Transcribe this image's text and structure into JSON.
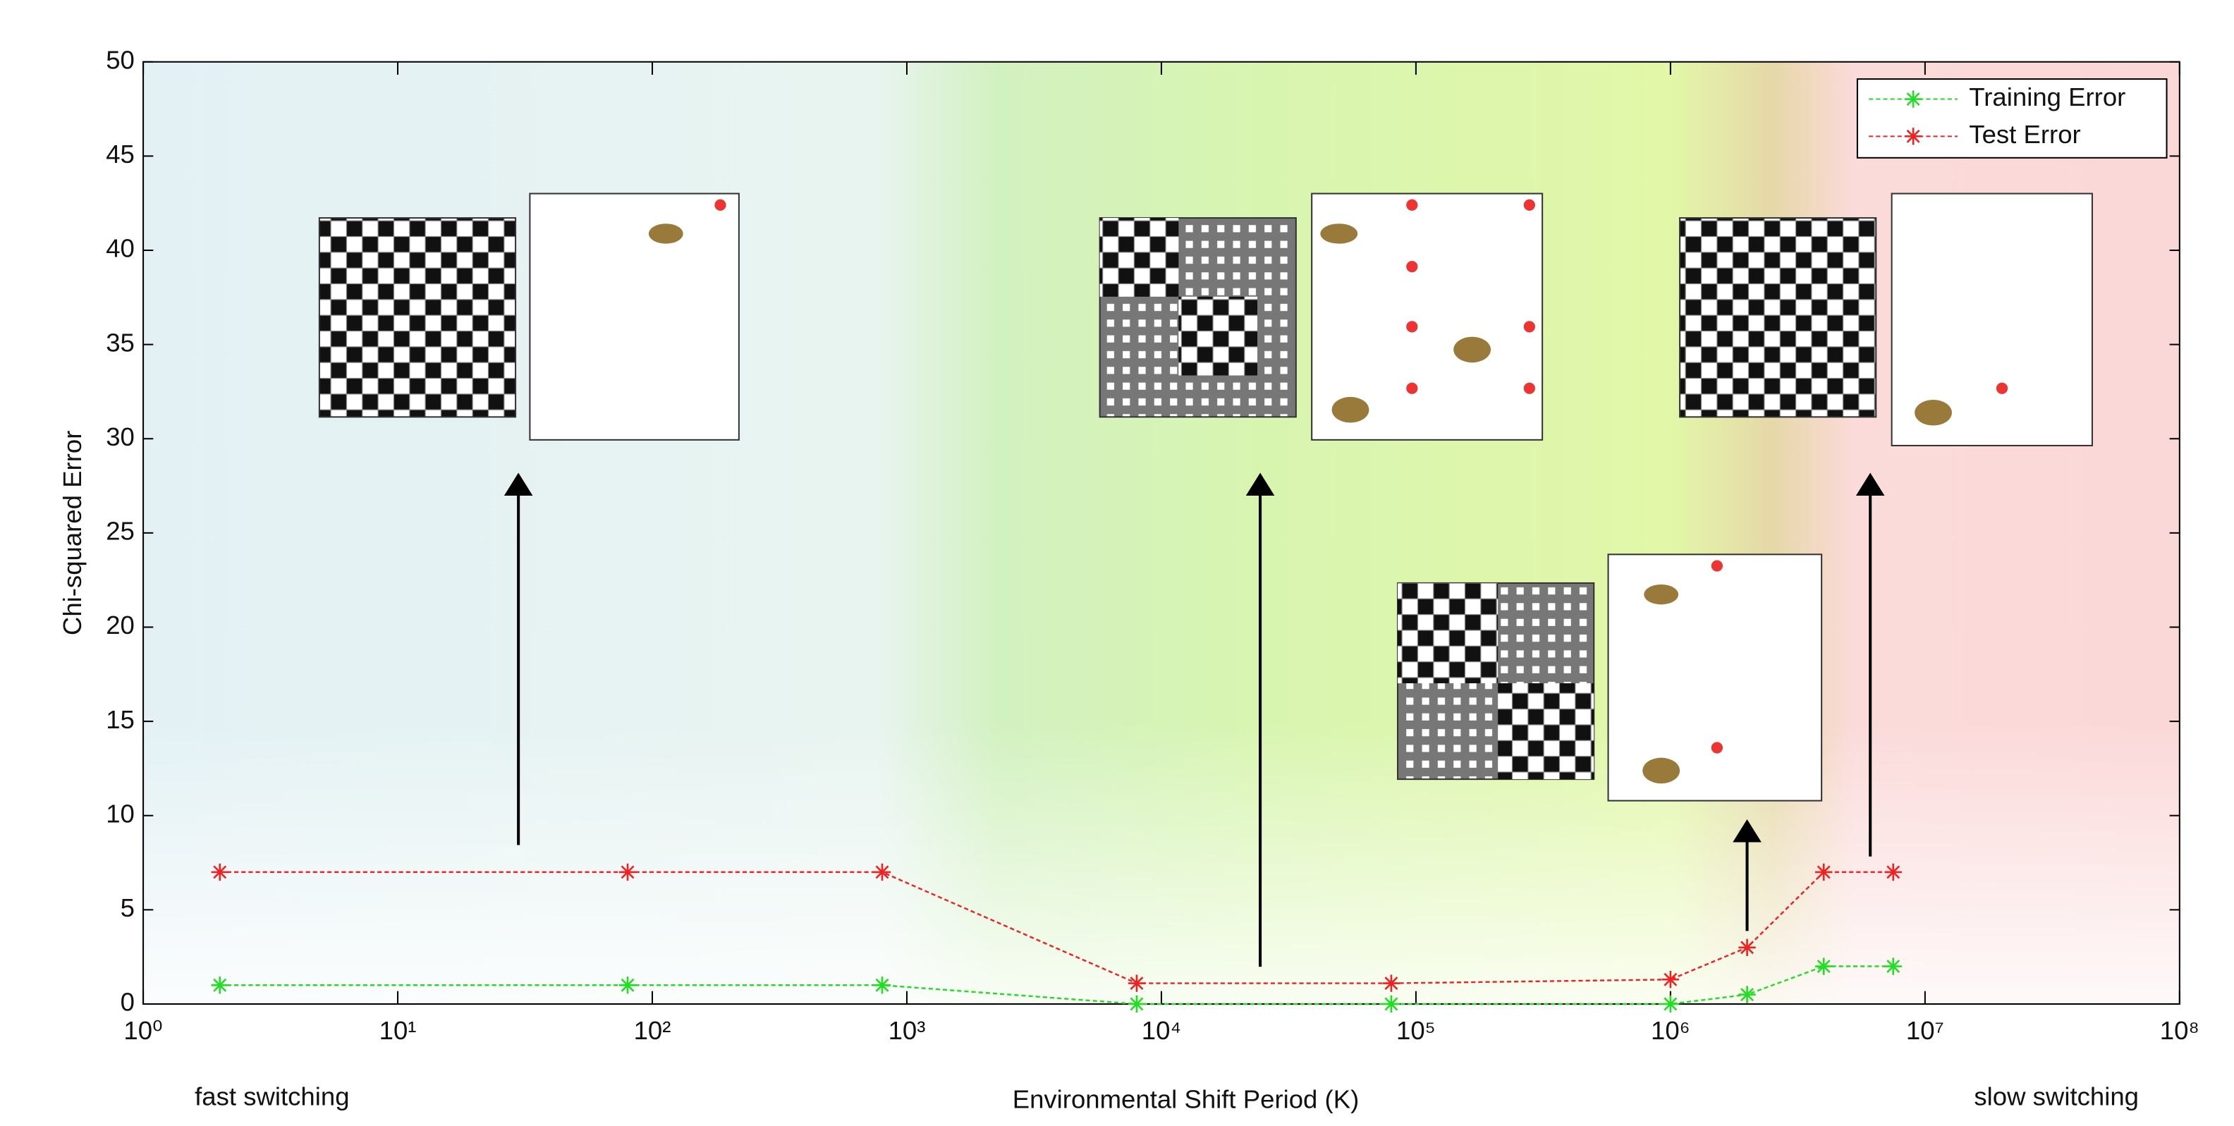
{
  "chart_data": {
    "type": "line",
    "xlabel": "Environmental Shift Period (K)",
    "ylabel": "Chi-squared Error",
    "left_note": "fast  switching",
    "right_note": "slow  switching",
    "xscale": "log",
    "xlim": [
      1,
      100000000
    ],
    "xticks": [
      {
        "value": 1,
        "label": "10⁰"
      },
      {
        "value": 10,
        "label": "10¹"
      },
      {
        "value": 100,
        "label": "10²"
      },
      {
        "value": 1000,
        "label": "10³"
      },
      {
        "value": 10000,
        "label": "10⁴"
      },
      {
        "value": 100000,
        "label": "10⁵"
      },
      {
        "value": 1000000,
        "label": "10⁶"
      },
      {
        "value": 10000000,
        "label": "10⁷"
      },
      {
        "value": 100000000,
        "label": "10⁸"
      }
    ],
    "ylim": [
      0,
      50
    ],
    "yticks": [
      0,
      5,
      10,
      15,
      20,
      25,
      30,
      35,
      40,
      45,
      50
    ],
    "legend": "upper right",
    "series": [
      {
        "name": "Training Error",
        "color": "#22dd22",
        "x": [
          2,
          80,
          800,
          8000,
          80000,
          1000000,
          2000000,
          4000000,
          7500000
        ],
        "values": [
          1,
          1,
          1,
          0,
          0,
          0,
          0.5,
          2,
          2
        ]
      },
      {
        "name": "Test Error",
        "color": "#ee2222",
        "x": [
          2,
          80,
          800,
          8000,
          80000,
          1000000,
          2000000,
          4000000,
          7500000
        ],
        "values": [
          7,
          7,
          7,
          1.1,
          1.1,
          1.3,
          3,
          7,
          7
        ]
      }
    ]
  }
}
